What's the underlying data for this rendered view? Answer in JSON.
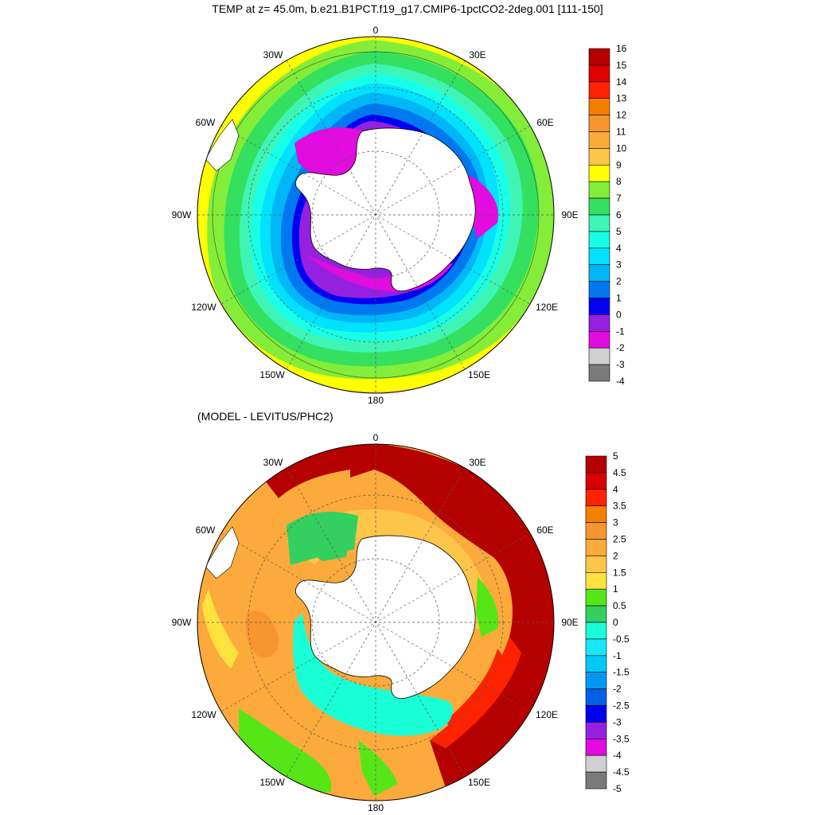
{
  "top_panel": {
    "title": "TEMP at z=  45.0m, b.e21.B1PCT.f19_g17.CMIP6-1pctCO2-2deg.001 [111-150]",
    "lon_labels": [
      "0",
      "30E",
      "60E",
      "90E",
      "120E",
      "150E",
      "180",
      "150W",
      "120W",
      "90W",
      "60W",
      "30W"
    ],
    "colorbar": {
      "labels": [
        "16",
        "15",
        "14",
        "13",
        "12",
        "11",
        "10",
        "9",
        "8",
        "7",
        "6",
        "5",
        "4",
        "3",
        "2",
        "1",
        "0",
        "-1",
        "-2",
        "-3",
        "-4"
      ],
      "colors": [
        "#b50000",
        "#e00000",
        "#ff2200",
        "#f57f00",
        "#f7962f",
        "#fbaa3b",
        "#fdc54a",
        "#ffff00",
        "#83ed3a",
        "#33e060",
        "#3ef5b6",
        "#18ffe8",
        "#00e2ff",
        "#00b6f7",
        "#0078ef",
        "#0000f0",
        "#9620e0",
        "#e20be0",
        "#d0d0d0",
        "#7a7a7a"
      ]
    }
  },
  "bottom_panel": {
    "title": "(MODEL - LEVITUS/PHC2)",
    "lon_labels": [
      "0",
      "30E",
      "60E",
      "90E",
      "120E",
      "150E",
      "180",
      "150W",
      "120W",
      "90W",
      "60W",
      "30W"
    ],
    "colorbar": {
      "labels": [
        "5",
        "4.5",
        "4",
        "3.5",
        "3",
        "2.5",
        "2",
        "1.5",
        "1",
        "0.5",
        "0",
        "-0.5",
        "-1",
        "-1.5",
        "-2",
        "-2.5",
        "-3",
        "-3.5",
        "-4",
        "-4.5",
        "-5"
      ],
      "colors": [
        "#b50000",
        "#d80000",
        "#ff2200",
        "#f57f00",
        "#f7962f",
        "#fbaa3b",
        "#fdc54a",
        "#ffe240",
        "#56e617",
        "#33d060",
        "#18ffd6",
        "#18e6ff",
        "#00c8f7",
        "#0098ef",
        "#0060e6",
        "#0000f0",
        "#9620e0",
        "#e20be0",
        "#d0d0d0",
        "#7a7a7a"
      ]
    }
  }
}
